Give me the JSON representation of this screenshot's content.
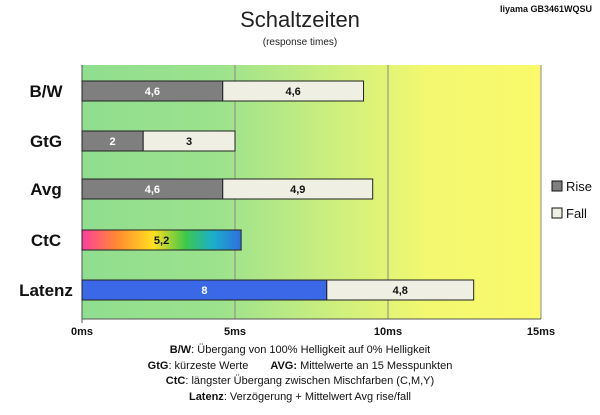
{
  "header": {
    "title": "Schaltzeiten",
    "subtitle": "(response times)",
    "device": "Iiyama GB3461WQSU"
  },
  "colors": {
    "rise": "#7f7f7f",
    "fall": "#efefe4",
    "latency_rise": "#3b68e6",
    "bg_left": "#8fde8f",
    "bg_right": "#fafa6a"
  },
  "chart_data": {
    "type": "bar",
    "orientation": "horizontal",
    "stacked": true,
    "categories": [
      "B/W",
      "GtG",
      "Avg",
      "CtC",
      "Latenz"
    ],
    "series": [
      {
        "name": "Rise",
        "values": [
          4.6,
          2,
          4.6,
          5.2,
          8
        ],
        "labels": [
          "4,6",
          "2",
          "4,6",
          "5,2",
          "8"
        ]
      },
      {
        "name": "Fall",
        "values": [
          4.6,
          3,
          4.9,
          0,
          4.8
        ],
        "labels": [
          "4,6",
          "3",
          "4,9",
          "",
          "4,8"
        ]
      }
    ],
    "xlim": [
      0,
      15
    ],
    "xticks": [
      0,
      5,
      10,
      15
    ],
    "xtick_labels": [
      "0ms",
      "5ms",
      "10ms",
      "15ms"
    ],
    "grid": "vertical",
    "legend": {
      "position": "right",
      "entries": [
        "Rise",
        "Fall"
      ]
    }
  },
  "notes": {
    "line1_key": "B/W",
    "line1_text": ":  Übergang von 100% Helligkeit auf 0% Helligkeit",
    "line2_key": "GtG",
    "line2_text": ": kürzeste  Werte",
    "line2b_key": "AVG:",
    "line2b_text": " Mittelwerte an 15 Messpunkten",
    "line3_key": "CtC",
    "line3_text": ": längster Übergang  zwischen Mischfarben  (C,M,Y)",
    "line4_key": "Latenz",
    "line4_text": ": Verzögerung  + Mittelwert  Avg rise/fall"
  }
}
